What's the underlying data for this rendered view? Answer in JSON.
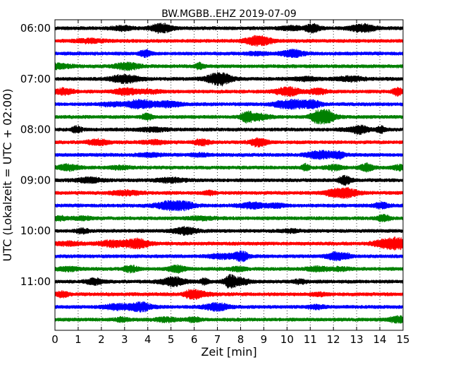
{
  "chart_data": {
    "type": "line",
    "title": "BW.MGBB..EHZ 2019-07-09",
    "xlabel": "Zeit  [min]",
    "ylabel": "UTC (Lokalzeit = UTC + 02:00)",
    "xlim": [
      0,
      15
    ],
    "x_ticks": [
      "0",
      "1",
      "2",
      "3",
      "4",
      "5",
      "6",
      "7",
      "8",
      "9",
      "10",
      "11",
      "12",
      "13",
      "14",
      "15"
    ],
    "y_ticks": [
      {
        "label": "06:00",
        "trace": 0
      },
      {
        "label": "07:00",
        "trace": 4
      },
      {
        "label": "08:00",
        "trace": 8
      },
      {
        "label": "09:00",
        "trace": 12
      },
      {
        "label": "10:00",
        "trace": 16
      },
      {
        "label": "11:00",
        "trace": 20
      }
    ],
    "grid": "vertical dotted at each minute",
    "trace_interval_min": 15,
    "traces": [
      {
        "start": "06:00",
        "color": "#000000"
      },
      {
        "start": "06:15",
        "color": "#ff0000"
      },
      {
        "start": "06:30",
        "color": "#0000ff"
      },
      {
        "start": "06:45",
        "color": "#008000"
      },
      {
        "start": "07:00",
        "color": "#000000"
      },
      {
        "start": "07:15",
        "color": "#ff0000"
      },
      {
        "start": "07:30",
        "color": "#0000ff"
      },
      {
        "start": "07:45",
        "color": "#008000"
      },
      {
        "start": "08:00",
        "color": "#000000"
      },
      {
        "start": "08:15",
        "color": "#ff0000"
      },
      {
        "start": "08:30",
        "color": "#0000ff"
      },
      {
        "start": "08:45",
        "color": "#008000"
      },
      {
        "start": "09:00",
        "color": "#000000"
      },
      {
        "start": "09:15",
        "color": "#ff0000"
      },
      {
        "start": "09:30",
        "color": "#0000ff"
      },
      {
        "start": "09:45",
        "color": "#008000"
      },
      {
        "start": "10:00",
        "color": "#000000"
      },
      {
        "start": "10:15",
        "color": "#ff0000"
      },
      {
        "start": "10:30",
        "color": "#0000ff"
      },
      {
        "start": "10:45",
        "color": "#008000"
      },
      {
        "start": "11:00",
        "color": "#000000"
      },
      {
        "start": "11:15",
        "color": "#ff0000"
      },
      {
        "start": "11:30",
        "color": "#0000ff"
      },
      {
        "start": "11:45",
        "color": "#008000"
      }
    ]
  }
}
